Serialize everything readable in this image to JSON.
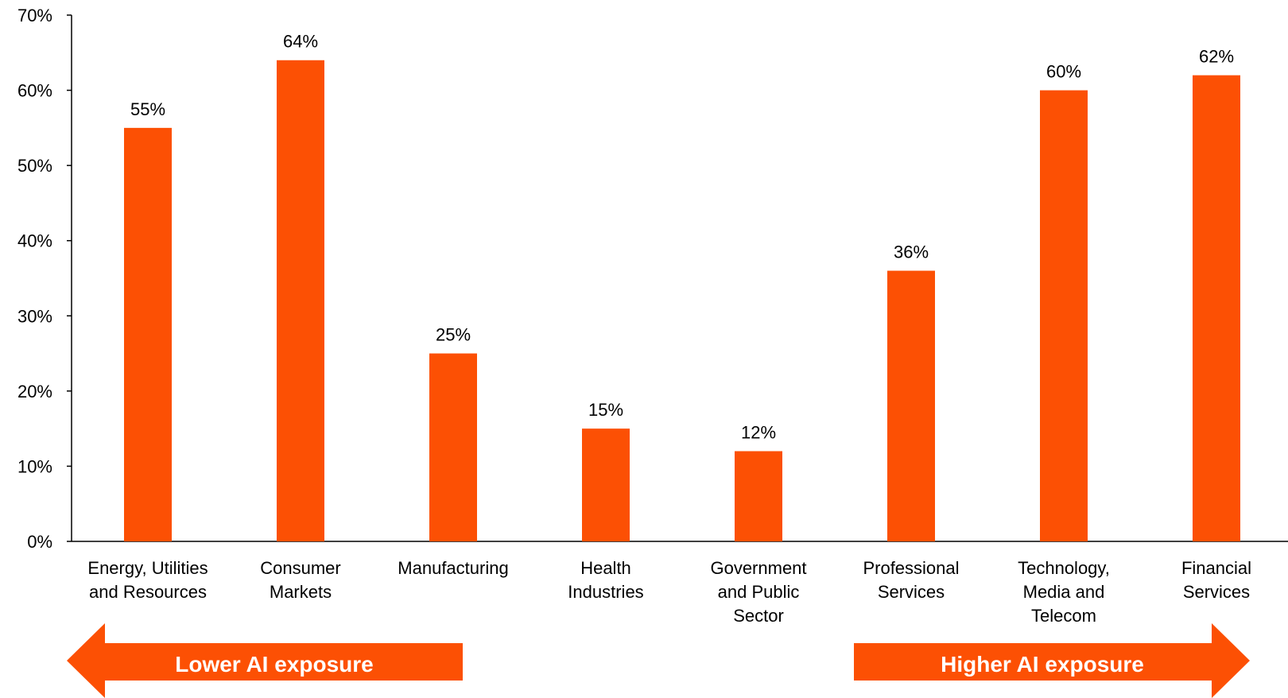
{
  "chart_data": {
    "type": "bar",
    "categories": [
      [
        "Energy, Utilities",
        "and Resources"
      ],
      [
        "Consumer",
        "Markets"
      ],
      [
        "Manufacturing"
      ],
      [
        "Health",
        "Industries"
      ],
      [
        "Government",
        "and Public",
        "Sector"
      ],
      [
        "Professional",
        "Services"
      ],
      [
        "Technology,",
        "Media and",
        "Telecom"
      ],
      [
        "Financial",
        "Services"
      ]
    ],
    "values": [
      55,
      64,
      25,
      15,
      12,
      36,
      60,
      62
    ],
    "data_labels": [
      "55%",
      "64%",
      "25%",
      "15%",
      "12%",
      "36%",
      "60%",
      "62%"
    ],
    "ylim": [
      0,
      70
    ],
    "yticks": [
      0,
      10,
      20,
      30,
      40,
      50,
      60,
      70
    ],
    "ytick_labels": [
      "0%",
      "10%",
      "20%",
      "30%",
      "40%",
      "50%",
      "60%",
      "70%"
    ],
    "title": "",
    "xlabel": "",
    "ylabel": "",
    "grid": false,
    "bar_color": "#FC5004"
  },
  "annotations": {
    "left_arrow": {
      "label": "Lower AI exposure",
      "direction": "left",
      "color": "#FC5004"
    },
    "right_arrow": {
      "label": "Higher AI exposure",
      "direction": "right",
      "color": "#FC5004"
    }
  }
}
